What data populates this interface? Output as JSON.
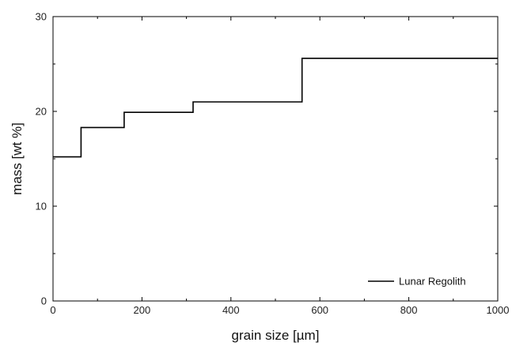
{
  "chart_data": {
    "type": "line",
    "step": true,
    "xlabel": "grain size [µm]",
    "ylabel": "mass [wt %]",
    "xlim": [
      0,
      1000
    ],
    "ylim": [
      0,
      30
    ],
    "xticks": [
      0,
      200,
      400,
      600,
      800,
      1000
    ],
    "yticks": [
      0,
      10,
      20,
      30
    ],
    "xtick_labels": [
      "0",
      "200",
      "400",
      "600",
      "800",
      "1000"
    ],
    "ytick_labels": [
      "0",
      "10",
      "20",
      "30"
    ],
    "grid": false,
    "legend": {
      "position": "bottom-right",
      "entries": [
        "Lunar Regolith"
      ]
    },
    "series": [
      {
        "name": "Lunar Regolith",
        "color": "#000000",
        "x": [
          0,
          63,
          63,
          160,
          160,
          315,
          315,
          560,
          560,
          1000
        ],
        "y": [
          15.2,
          15.2,
          18.3,
          18.3,
          19.9,
          19.9,
          21.0,
          21.0,
          25.6,
          25.6
        ]
      }
    ]
  }
}
